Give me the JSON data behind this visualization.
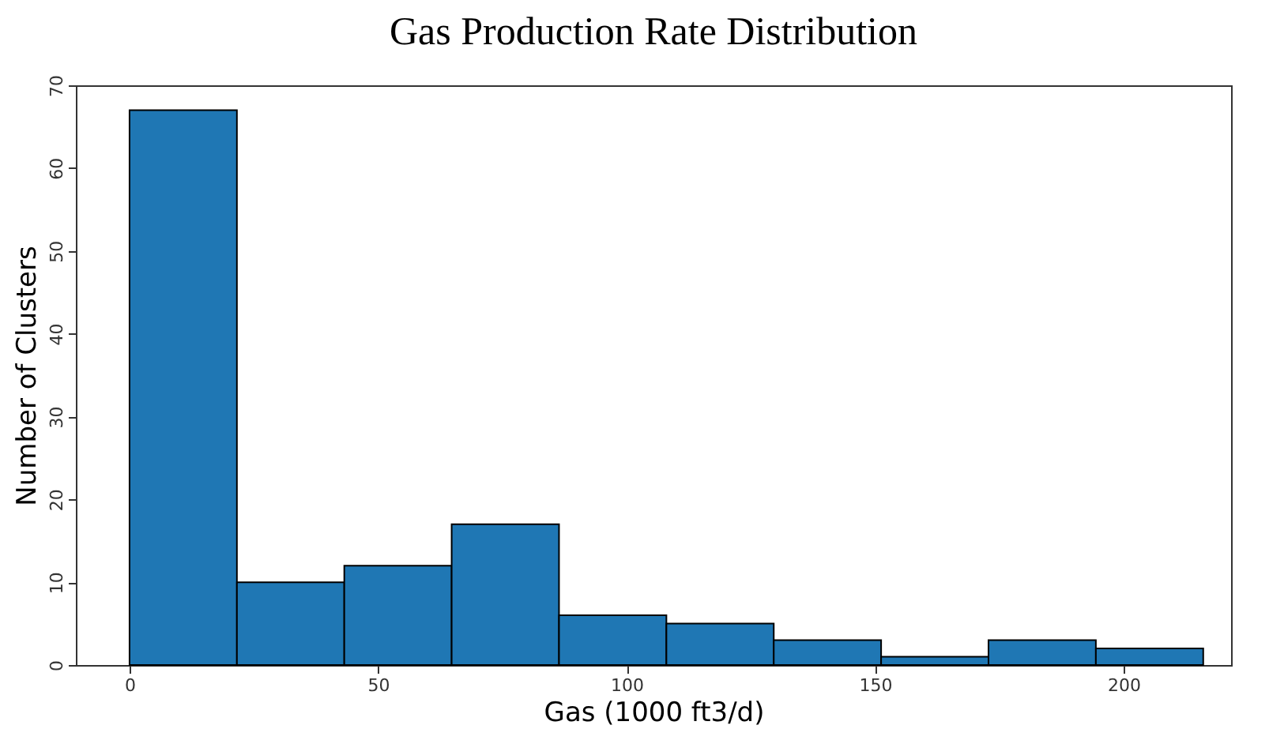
{
  "chart_data": {
    "type": "histogram",
    "title": "Gas Production Rate Distribution",
    "xlabel": "Gas (1000 ft3/d)",
    "ylabel": "Number of Clusters",
    "bins": [
      0,
      21.6,
      43.2,
      64.8,
      86.4,
      108,
      129.6,
      151.2,
      172.8,
      194.4,
      216
    ],
    "values": [
      67,
      10,
      12,
      17,
      6,
      5,
      3,
      1,
      3,
      2
    ],
    "color": "#1f77b4",
    "xlim": [
      -10.8,
      221.6
    ],
    "xticks": [
      0,
      50,
      100,
      150,
      200
    ],
    "ylim": [
      0,
      70
    ],
    "yticks": [
      0,
      10,
      20,
      30,
      40,
      50,
      60,
      70
    ],
    "grid": false
  }
}
